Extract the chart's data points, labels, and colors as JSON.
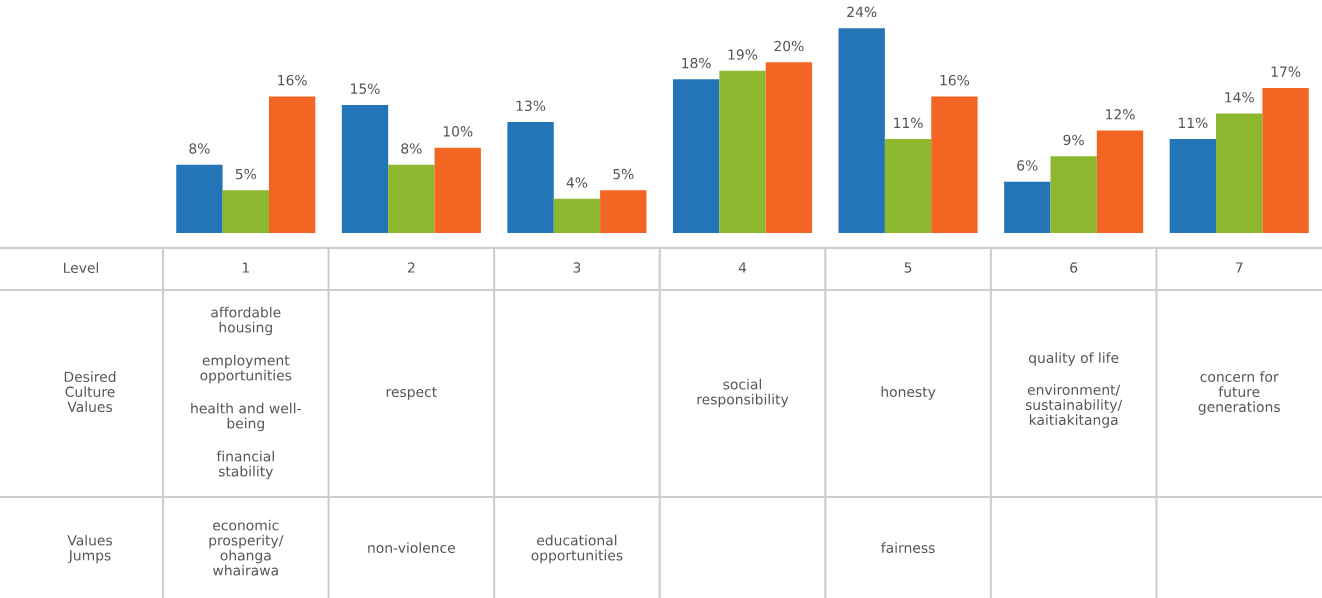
{
  "chart_data": {
    "type": "bar",
    "xlabel": "Level",
    "categories": [
      "1",
      "2",
      "3",
      "4",
      "5",
      "6",
      "7"
    ],
    "series": [
      {
        "color": "#2474b8",
        "values": [
          8,
          15,
          13,
          18,
          24,
          6,
          11
        ],
        "value_labels": [
          "8%",
          "15%",
          "13%",
          "18%",
          "24%",
          "6%",
          "11%"
        ]
      },
      {
        "color": "#8db72e",
        "values": [
          5,
          8,
          4,
          19,
          11,
          9,
          14
        ],
        "value_labels": [
          "5%",
          "8%",
          "4%",
          "19%",
          "11%",
          "9%",
          "14%"
        ]
      },
      {
        "color": "#f26522",
        "values": [
          16,
          10,
          5,
          20,
          16,
          12,
          17
        ],
        "value_labels": [
          "16%",
          "10%",
          "5%",
          "20%",
          "16%",
          "12%",
          "17%"
        ]
      }
    ],
    "grid": false,
    "legend": false,
    "annotations": [
      "Desired\nCulture\nValues",
      "affordable\nhousing",
      "employment\nopportunities",
      "health and well-\nbeing",
      "financial\nstability",
      "respect",
      "social\nresponsibility",
      "honesty",
      "quality of life",
      "environment/\nsustainability/\nkaitiakitanga",
      "concern for\nfuture\ngenerations",
      "Values\nJumps",
      "economic\nprosperity/\nohanga\nwhairawa",
      "non-violence",
      "educational\nopportunities",
      "fairness"
    ]
  }
}
